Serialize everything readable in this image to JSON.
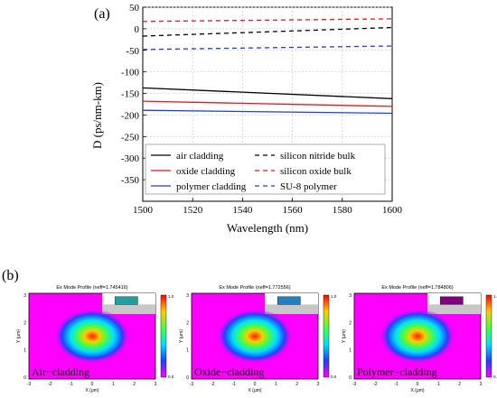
{
  "panel_a": {
    "label": "(a)",
    "chart_data": {
      "type": "line",
      "title": "",
      "xlabel": "Wavelength (nm)",
      "ylabel": "D (ps/nm-km)",
      "xlim": [
        1500,
        1600
      ],
      "ylim": [
        -400,
        50
      ],
      "xticks": [
        1500,
        1520,
        1540,
        1560,
        1580,
        1600
      ],
      "yticks": [
        50,
        0,
        -50,
        -100,
        -150,
        -200,
        -250,
        -300,
        -350
      ],
      "grid": true,
      "legend_placement": "bottom-left",
      "series": [
        {
          "name": "air cladding",
          "color": "#000000",
          "dash": "solid",
          "x": [
            1500,
            1600
          ],
          "y": [
            -137,
            -162
          ]
        },
        {
          "name": "silicon nitride bulk",
          "color": "#000000",
          "dash": "dashed",
          "x": [
            1500,
            1600
          ],
          "y": [
            -17,
            3
          ]
        },
        {
          "name": "oxide cladding",
          "color": "#e8141c",
          "dash": "solid",
          "x": [
            1500,
            1600
          ],
          "y": [
            -168,
            -180
          ]
        },
        {
          "name": "silicon oxide bulk",
          "color": "#e8141c",
          "dash": "dashed",
          "x": [
            1500,
            1600
          ],
          "y": [
            17,
            23
          ]
        },
        {
          "name": "polymer cladding",
          "color": "#1f3fd8",
          "dash": "solid",
          "x": [
            1500,
            1600
          ],
          "y": [
            -189,
            -196
          ]
        },
        {
          "name": "SU-8 polymer",
          "color": "#1f3fd8",
          "dash": "dashed",
          "x": [
            1500,
            1600
          ],
          "y": [
            -48,
            -40
          ]
        }
      ]
    }
  },
  "panel_b": {
    "label": "(b)",
    "colors": {
      "background": "#ff00ff",
      "core_red": "#ff1a00",
      "box_gray": "#c8c8c8",
      "frame": "#000000"
    },
    "colorbar_ticks": [
      "1.0",
      "0.0"
    ],
    "plots": [
      {
        "title": "Ex Mode Profile (neff=1.745416)",
        "caption": "Air−cladding",
        "core_color": "#20a0a0",
        "xlabel": "X (μm)",
        "ylabel": "Y (μm)"
      },
      {
        "title": "Ex Mode Profile (neff=1.772556)",
        "caption": "Oxide−cladding",
        "core_color": "#2080c0",
        "xlabel": "X (μm)",
        "ylabel": "Y (μm)"
      },
      {
        "title": "Ex Mode Profile (neff=1.784806)",
        "caption": "Polymer−cladding",
        "core_color": "#800080",
        "xlabel": "X (μm)",
        "ylabel": "Y (μm)"
      }
    ],
    "x_ticks": [
      "-3",
      "-2",
      "-1",
      "0",
      "1",
      "2",
      "3"
    ],
    "y_ticks": [
      "3",
      "2",
      "1",
      "0"
    ]
  }
}
